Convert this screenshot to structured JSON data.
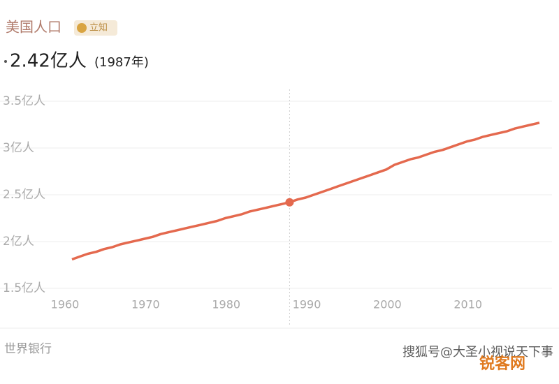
{
  "chart_data": {
    "type": "line",
    "title": "美国人口",
    "badge": "立知",
    "highlight": {
      "x": 1987,
      "value": 2.42,
      "value_label": "2.42亿人",
      "x_label": "(1987年)"
    },
    "source": "世界银行",
    "watermark": "搜狐号@大圣小视说天下事",
    "watermark2": "锐客网",
    "x": [
      1960,
      1961,
      1962,
      1963,
      1964,
      1965,
      1966,
      1967,
      1968,
      1969,
      1970,
      1971,
      1972,
      1973,
      1974,
      1975,
      1976,
      1977,
      1978,
      1979,
      1980,
      1981,
      1982,
      1983,
      1984,
      1985,
      1986,
      1987,
      1988,
      1989,
      1990,
      1991,
      1992,
      1993,
      1994,
      1995,
      1996,
      1997,
      1998,
      1999,
      2000,
      2001,
      2002,
      2003,
      2004,
      2005,
      2006,
      2007,
      2008,
      2009,
      2010,
      2011,
      2012,
      2013,
      2014,
      2015,
      2016,
      2017,
      2018
    ],
    "series": [
      {
        "name": "美国人口",
        "color": "#e4694e",
        "values": [
          1.81,
          1.84,
          1.87,
          1.89,
          1.92,
          1.94,
          1.97,
          1.99,
          2.01,
          2.03,
          2.05,
          2.08,
          2.1,
          2.12,
          2.14,
          2.16,
          2.18,
          2.2,
          2.22,
          2.25,
          2.27,
          2.29,
          2.32,
          2.34,
          2.36,
          2.38,
          2.4,
          2.42,
          2.45,
          2.47,
          2.5,
          2.53,
          2.56,
          2.59,
          2.62,
          2.65,
          2.68,
          2.71,
          2.74,
          2.77,
          2.82,
          2.85,
          2.88,
          2.9,
          2.93,
          2.96,
          2.98,
          3.01,
          3.04,
          3.07,
          3.09,
          3.12,
          3.14,
          3.16,
          3.18,
          3.21,
          3.23,
          3.25,
          3.27
        ]
      }
    ],
    "xlim": [
      1960,
      2018
    ],
    "xticks": [
      1960,
      1970,
      1980,
      1990,
      2000,
      2010
    ],
    "ylim": [
      1.5,
      3.5
    ],
    "yticks": [
      {
        "value": 1.5,
        "label": "1.5亿人"
      },
      {
        "value": 2,
        "label": "2亿人"
      },
      {
        "value": 2.5,
        "label": "2.5亿人"
      },
      {
        "value": 3,
        "label": "3亿人"
      },
      {
        "value": 3.5,
        "label": "3.5亿人"
      }
    ],
    "grid": true
  }
}
